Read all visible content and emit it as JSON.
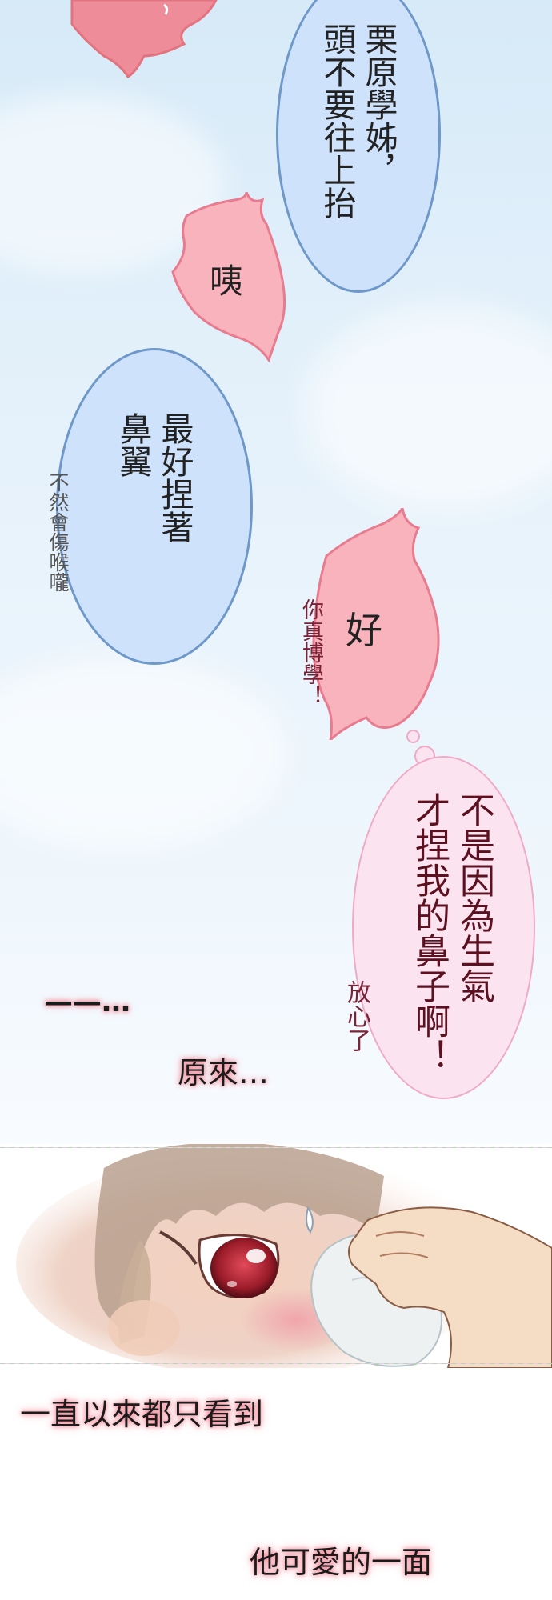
{
  "bubbles": {
    "top_blue": "栗原學姊，\n頭不要往上抬",
    "pink_small": "咦",
    "mid_blue": "最好捏著\n鼻翼",
    "mid_blue_side": "不然會傷喉嚨",
    "pink_medium": "好",
    "pink_medium_side": "你真博學！",
    "pink_large": "不是因為生氣\n才捏我的鼻子啊！",
    "pink_large_side": "放心了"
  },
  "captions": {
    "dash": "——…",
    "realization": "原來…",
    "line1": "一直以來都只看到",
    "line2": "他可愛的一面"
  },
  "colors": {
    "blue_fill": "#cfe2fb",
    "blue_border": "#6d98c9",
    "pink_fill": "#f8b3bd",
    "pink_border": "#e87b8f",
    "caption_text": "#1b1b1b",
    "caption_glow": "#f07080"
  }
}
